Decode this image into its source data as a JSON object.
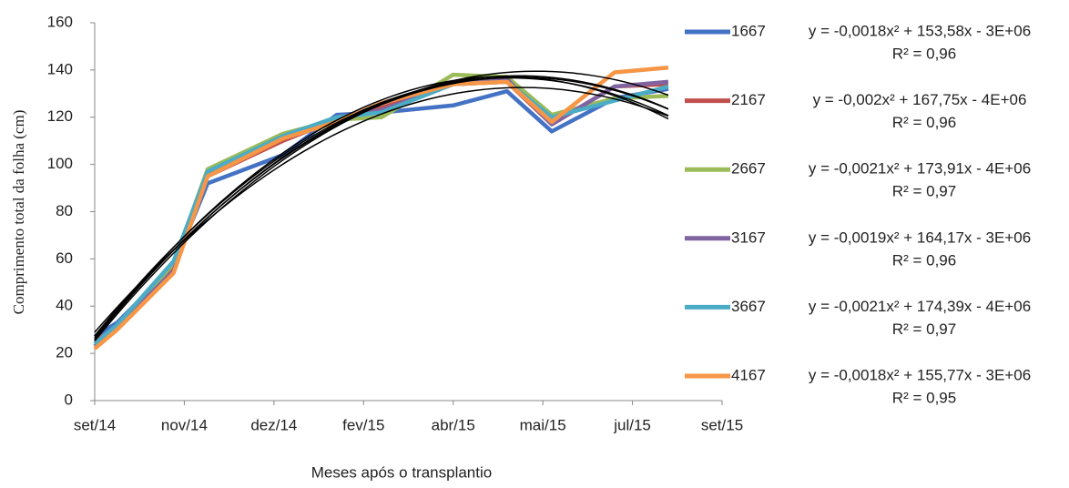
{
  "chart_data": {
    "type": "line",
    "x_label": "Meses após o transplantio",
    "y_label": "Comprimento total da folha (cm)",
    "xlim": [
      0,
      7
    ],
    "xticks": [
      {
        "value": 0,
        "label": "set/14"
      },
      {
        "value": 1,
        "label": "nov/14"
      },
      {
        "value": 2,
        "label": "dez/14"
      },
      {
        "value": 3,
        "label": "fev/15"
      },
      {
        "value": 4,
        "label": "abr/15"
      },
      {
        "value": 5,
        "label": "mai/15"
      },
      {
        "value": 6,
        "label": "jul/15"
      },
      {
        "value": 7,
        "label": "set/15"
      }
    ],
    "ylim": [
      0,
      160
    ],
    "yticks": [
      0,
      20,
      40,
      60,
      80,
      100,
      120,
      140,
      160
    ],
    "grid": false,
    "x": [
      0,
      0.25,
      0.88,
      1.26,
      2.1,
      2.7,
      3.2,
      4.0,
      4.6,
      5.1,
      5.8,
      6.4
    ],
    "series": [
      {
        "name": "1667",
        "color": "#4472c4",
        "values": [
          27,
          33,
          57,
          92,
          104,
          121,
          122,
          125,
          131,
          114,
          128,
          132
        ],
        "equation": "y = -0,0018x² + 153,58x - 3E+06",
        "r2": "R² = 0,96"
      },
      {
        "name": "2167",
        "color": "#c0504d",
        "values": [
          25,
          31,
          56,
          95,
          110,
          119,
          124,
          134,
          135,
          117,
          133,
          134
        ],
        "equation": "y = -0,002x² + 167,75x - 4E+06",
        "r2": "R² = 0,96"
      },
      {
        "name": "2667",
        "color": "#9bbb59",
        "values": [
          24,
          31,
          58,
          98,
          113,
          119,
          120,
          138,
          137,
          121,
          128,
          129
        ],
        "equation": "y = -0,0021x² + 173,91x - 4E+06",
        "r2": "R² = 0,97"
      },
      {
        "name": "3167",
        "color": "#8064a2",
        "values": [
          23,
          31,
          55,
          96,
          112,
          120,
          123,
          134,
          136,
          117,
          133,
          135
        ],
        "equation": "y = -0,0019x² + 164,17x - 3E+06",
        "r2": "R² = 0,96"
      },
      {
        "name": "3667",
        "color": "#4bacc6",
        "values": [
          24,
          32,
          59,
          97,
          112,
          120,
          122,
          134,
          135,
          120,
          127,
          133
        ],
        "equation": "y = -0,0021x² + 174,39x - 4E+06",
        "r2": "R² = 0,97"
      },
      {
        "name": "4167",
        "color": "#f79646",
        "values": [
          22,
          30,
          54,
          95,
          111,
          118,
          126,
          134,
          135,
          118,
          139,
          141
        ],
        "equation": "y = -0,0018x² + 155,77x - 3E+06",
        "r2": "R² = 0,95"
      }
    ]
  }
}
